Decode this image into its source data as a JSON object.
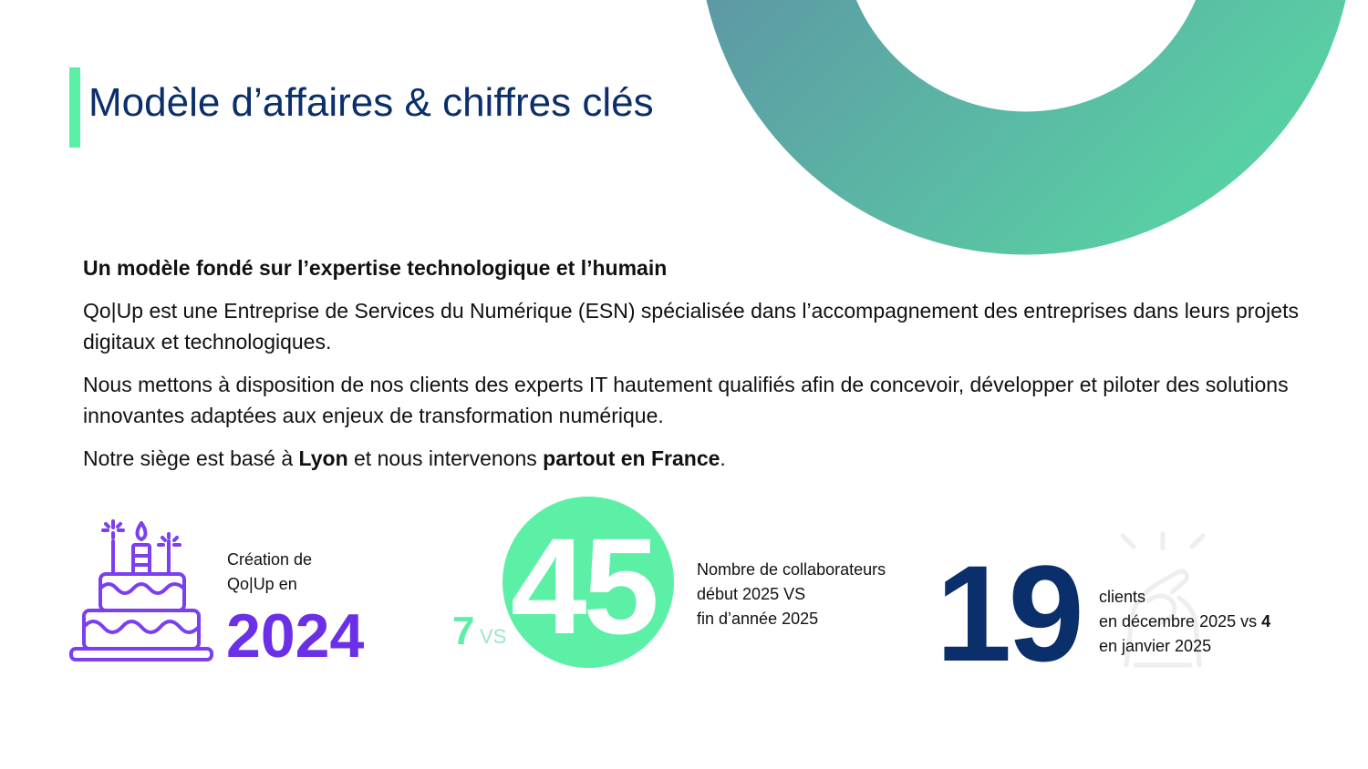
{
  "header": {
    "title": "Modèle d’affaires & chiffres clés"
  },
  "intro": {
    "subtitle": "Un modèle fondé sur l’expertise technologique et l’humain",
    "paragraph1": "Qo|Up est une Entreprise de Services du Numérique (ESN) spécialisée dans l’accompagnement des entreprises dans leurs projets digitaux et technologiques.",
    "paragraph2": "Nous mettons à disposition de nos clients des experts IT hautement qualifiés afin de concevoir, développer et piloter des solutions innovantes adaptées aux enjeux de transformation numérique.",
    "paragraph3": {
      "prefix": "Notre siège est basé à ",
      "city": "Lyon",
      "middle": " et nous intervenons ",
      "scope": "partout en France",
      "suffix": "."
    }
  },
  "stats": {
    "creation": {
      "line1": "Création de",
      "line2": "Qo|Up en",
      "year": "2024",
      "icon": "birthday-cake-icon",
      "color": "#6b2fe8"
    },
    "collaborators": {
      "start": "7",
      "vs": "VS",
      "end": "45",
      "line1": "Nombre de collaborateurs",
      "line2": "début 2025 VS",
      "line3": "fin d’année 2025",
      "color": "#5cf0a6"
    },
    "clients": {
      "value": "19",
      "line1": "clients",
      "line2_prefix": "en décembre 2025 vs ",
      "line2_value": "4",
      "line3": "en janvier 2025",
      "icon": "handshake-icon",
      "color": "#0a2f6b"
    }
  },
  "colors": {
    "title": "#0a2f6b",
    "accent": "#5cf0a6",
    "ring_start": "#5f84a6",
    "ring_end": "#58d4a3"
  }
}
